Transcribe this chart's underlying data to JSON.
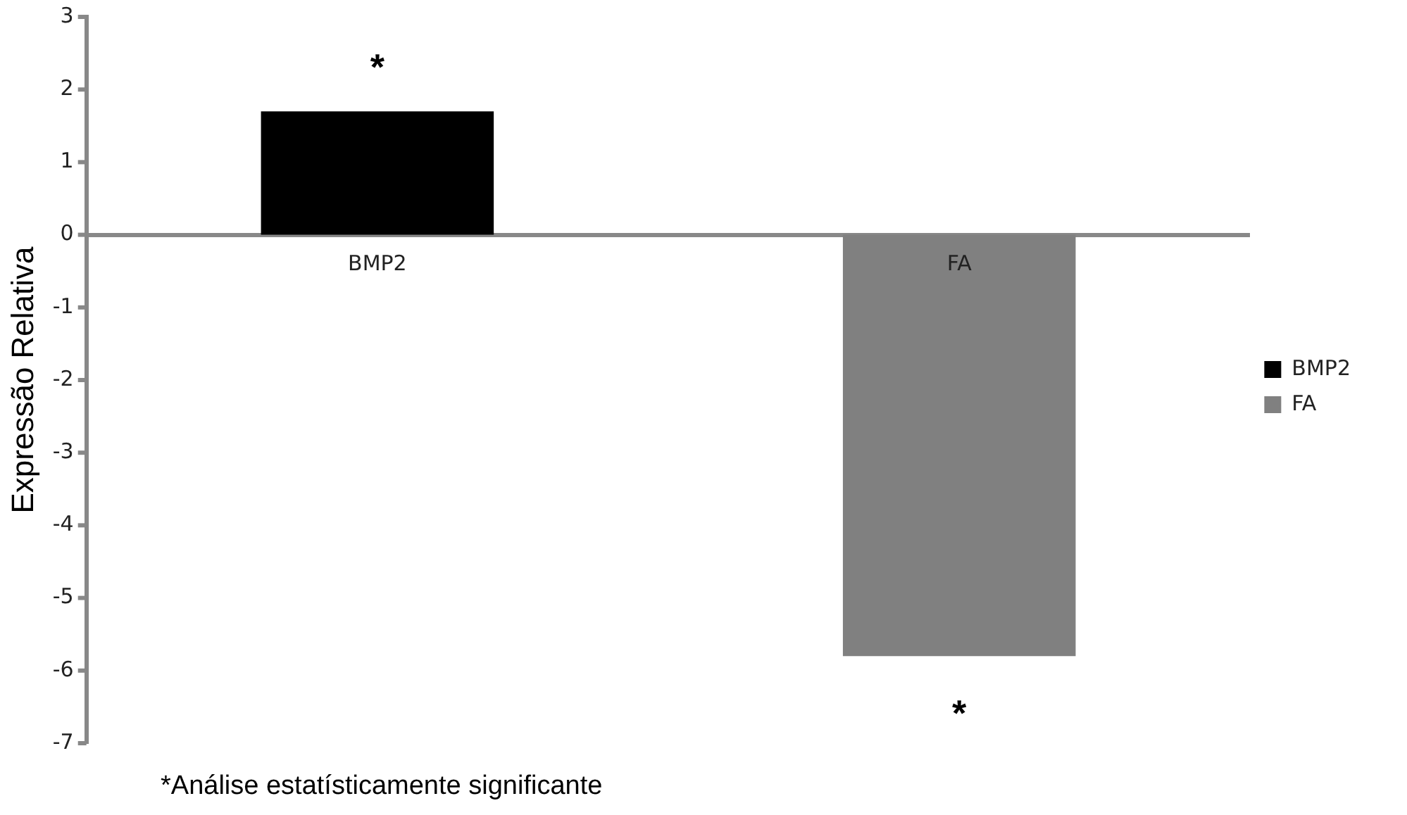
{
  "chart_data": {
    "type": "bar",
    "ylabel": "Expressão Relativa",
    "categories": [
      "BMP2",
      "FA"
    ],
    "series": [
      {
        "name": "BMP2",
        "color": "#000000",
        "values": [
          1.7,
          null
        ]
      },
      {
        "name": "FA",
        "color": "#808080",
        "values": [
          null,
          -5.8
        ]
      }
    ],
    "ylim": [
      -7,
      3
    ],
    "yticks": [
      -7,
      -6,
      -5,
      -4,
      -3,
      -2,
      -1,
      0,
      1,
      2,
      3
    ],
    "grid": false,
    "legend": "right",
    "annotations": [
      {
        "text": "*",
        "x": "BMP2",
        "y": 1.7
      },
      {
        "text": "*",
        "x": "FA",
        "y": -5.8
      },
      "*Análise estatísticamente significante"
    ]
  }
}
